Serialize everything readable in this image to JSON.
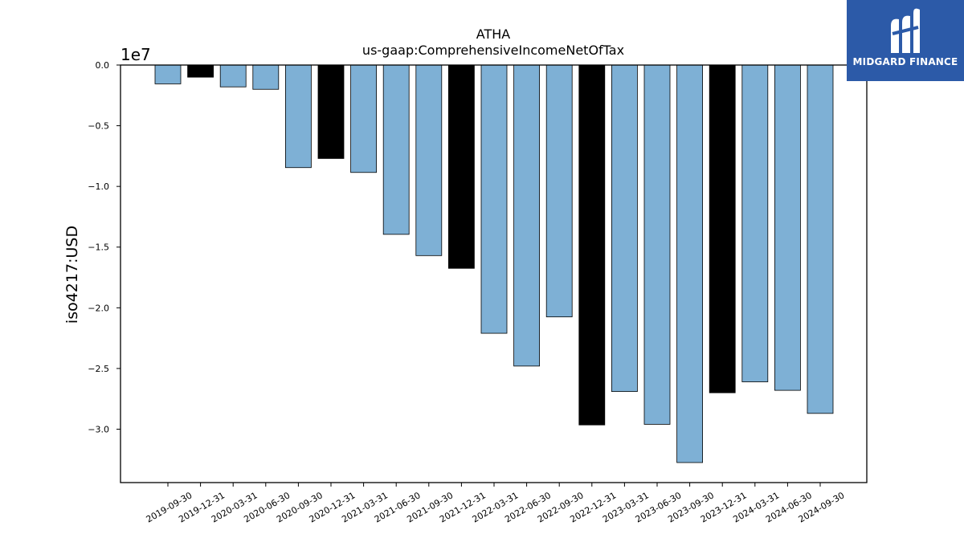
{
  "header": {
    "title": "ATHA",
    "subtitle": "us-gaap:ComprehensiveIncomeNetOfTax"
  },
  "brand": {
    "name": "MIDGARD FINANCE",
    "color": "#2c5aa8",
    "icon": "midgard-logo-icon"
  },
  "colors": {
    "bar_primary": "#7eb0d5",
    "bar_highlight": "#000000"
  },
  "chart_data": {
    "type": "bar",
    "title": "ATHA",
    "subtitle": "us-gaap:ComprehensiveIncomeNetOfTax",
    "ylabel": "iso4217:USD",
    "xlabel": "",
    "offset_label": "1e7",
    "scale": 10000000,
    "ylim": [
      -3.44,
      0.0
    ],
    "yticks": [
      0.0,
      -0.5,
      -1.0,
      -1.5,
      -2.0,
      -2.5,
      -3.0
    ],
    "ytick_labels": [
      "0.0",
      "−0.5",
      "−1.0",
      "−1.5",
      "−2.0",
      "−2.5",
      "−3.0"
    ],
    "grid": false,
    "categories": [
      "2019-09-30",
      "2019-12-31",
      "2020-03-31",
      "2020-06-30",
      "2020-09-30",
      "2020-12-31",
      "2021-03-31",
      "2021-06-30",
      "2021-09-30",
      "2021-12-31",
      "2022-03-31",
      "2022-06-30",
      "2022-09-30",
      "2022-12-31",
      "2023-03-31",
      "2023-06-30",
      "2023-09-30",
      "2023-12-31",
      "2024-03-31",
      "2024-06-30",
      "2024-09-30"
    ],
    "values": [
      -1550000,
      -1000000,
      -1800000,
      -2000000,
      -8450000,
      -7700000,
      -8850000,
      -13950000,
      -15700000,
      -16750000,
      -22100000,
      -24800000,
      -20750000,
      -29650000,
      -26900000,
      -29600000,
      -32750000,
      -27000000,
      -26100000,
      -26800000,
      -28700000
    ],
    "highlight": [
      false,
      true,
      false,
      false,
      false,
      true,
      false,
      false,
      false,
      true,
      false,
      false,
      false,
      true,
      false,
      false,
      false,
      true,
      false,
      false,
      false
    ]
  }
}
